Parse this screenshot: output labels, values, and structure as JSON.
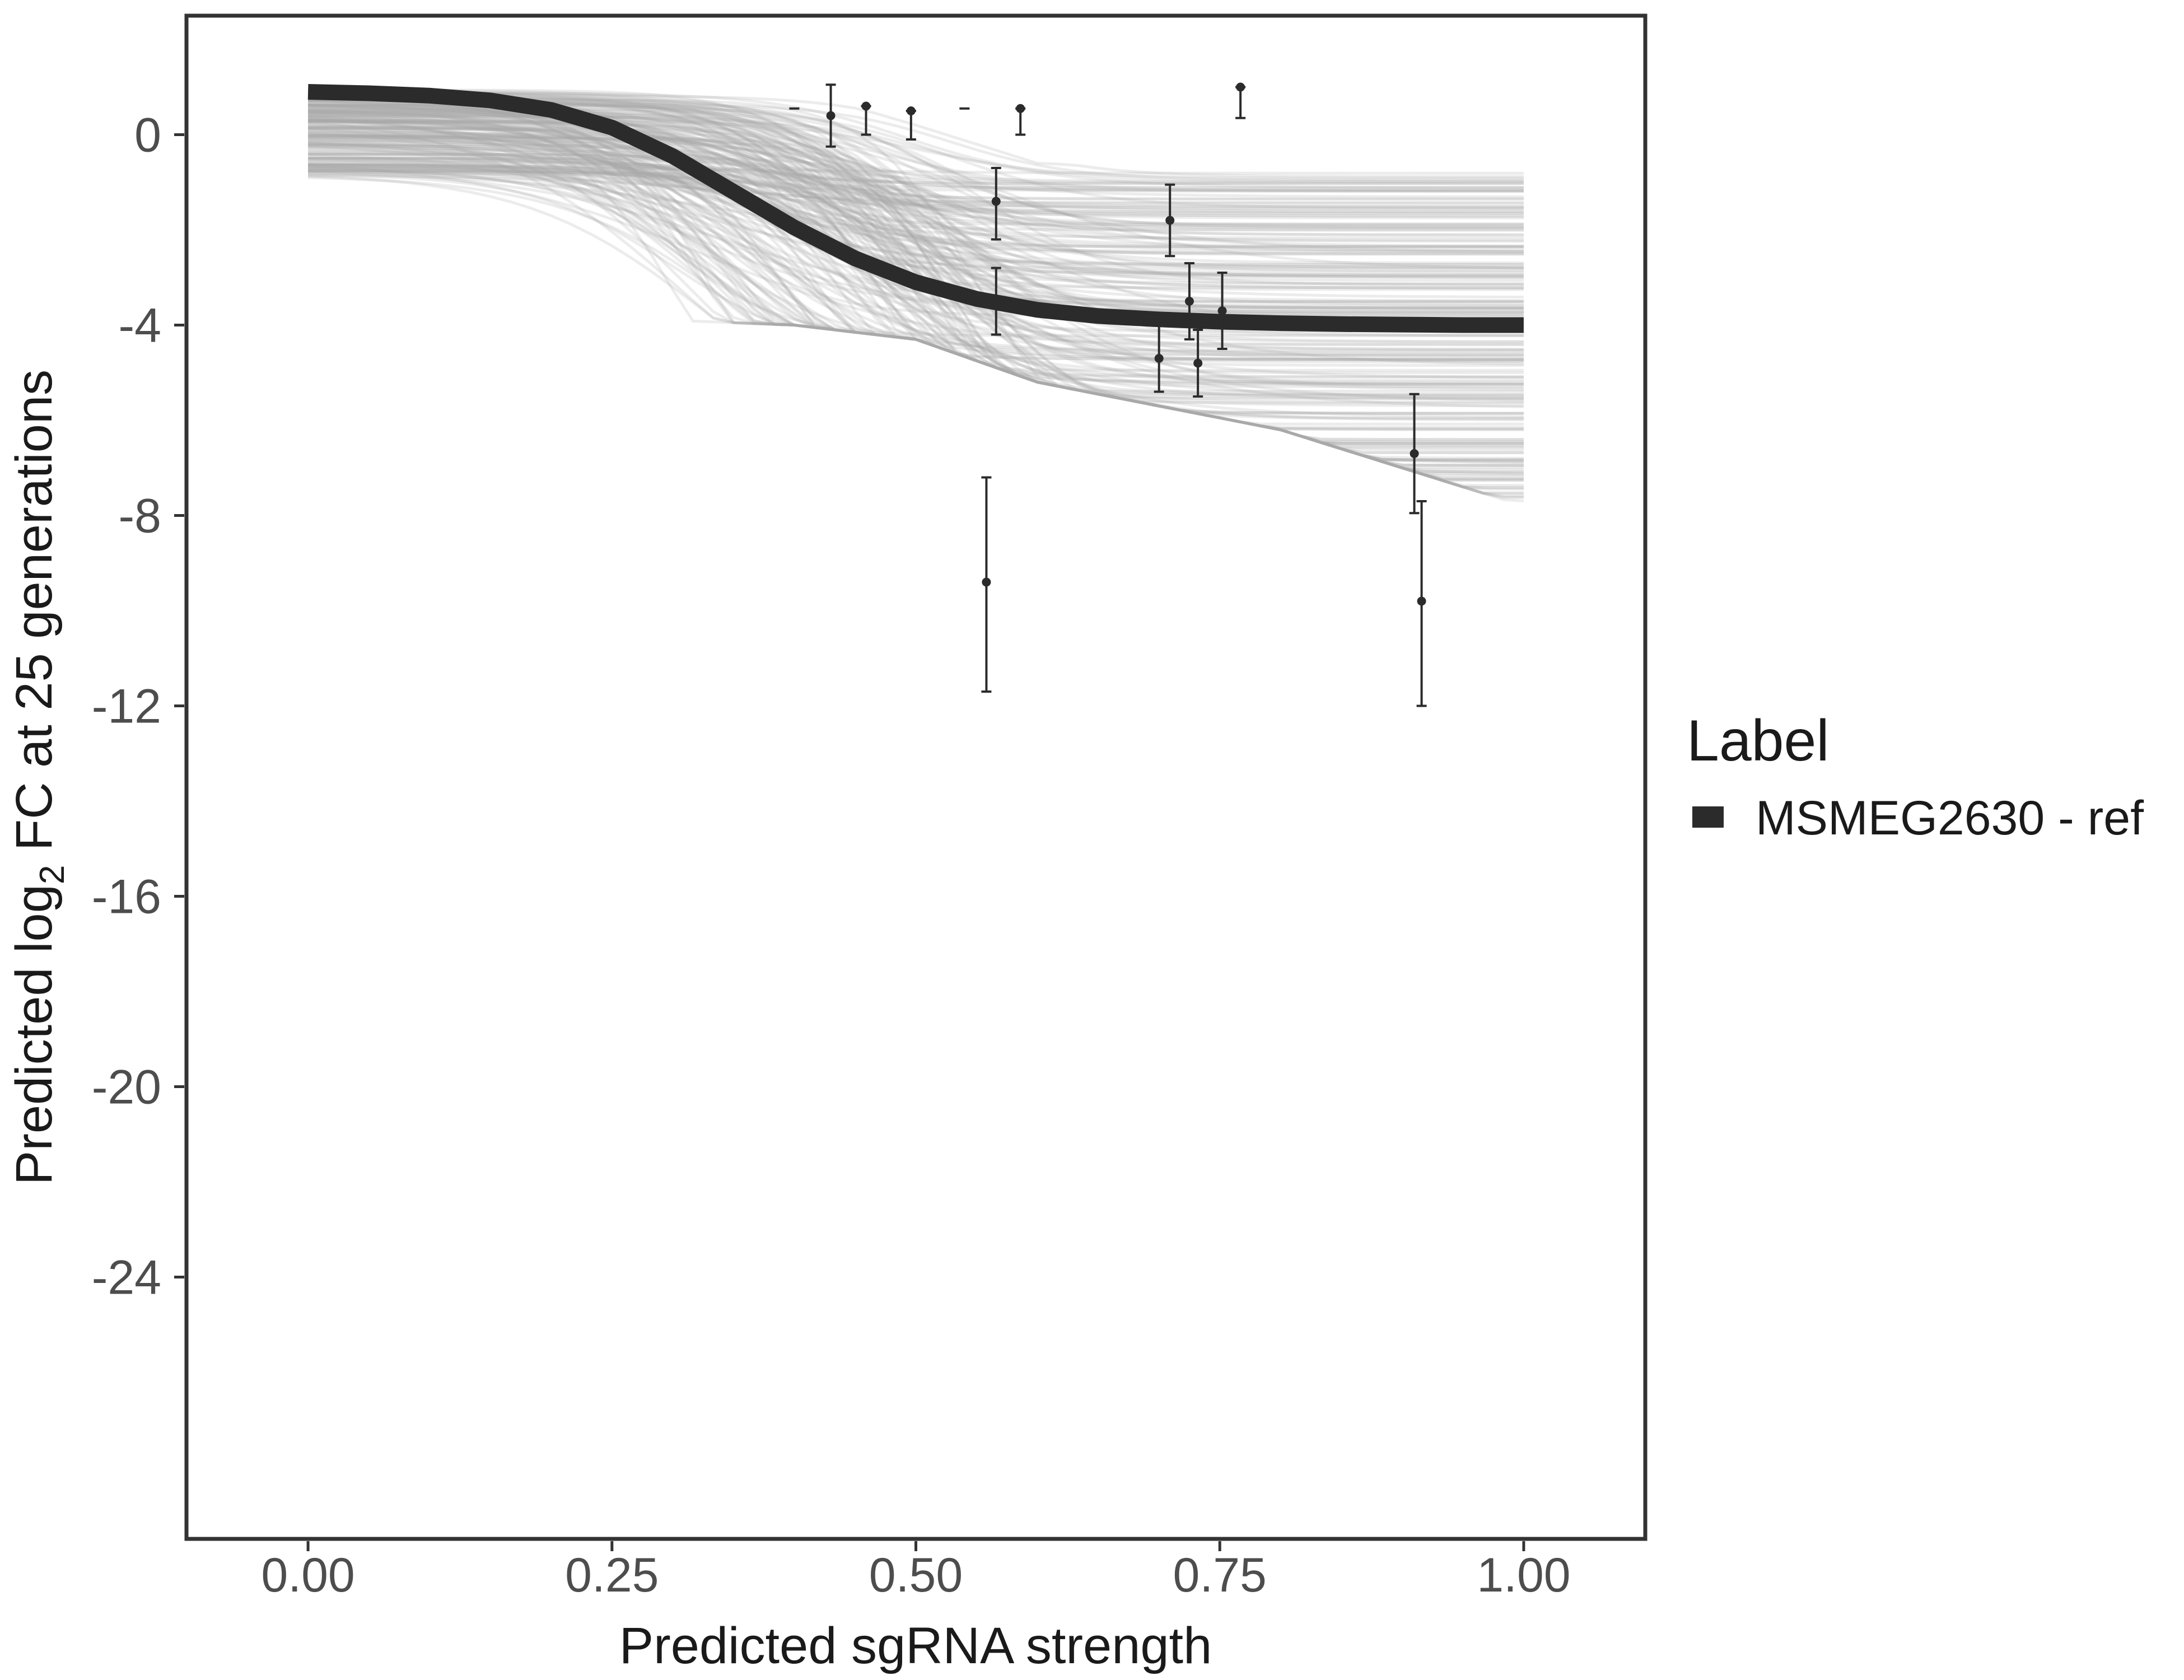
{
  "chart_data": {
    "type": "line",
    "title": "",
    "xlabel": "Predicted sgRNA strength",
    "ylabel": {
      "prefix": "Predicted  log",
      "subscript": "2",
      "suffix": " FC at 25 generations"
    },
    "xlim": [
      -0.1,
      2.0
    ],
    "xlim_visible": [
      -0.1,
      1.1
    ],
    "ylim": [
      -29.5,
      2.5
    ],
    "x_ticks": [
      0.0,
      0.25,
      0.5,
      0.75,
      1.0
    ],
    "x_tick_labels": [
      "0.00",
      "0.25",
      "0.50",
      "0.75",
      "1.00"
    ],
    "y_ticks": [
      0,
      -4,
      -8,
      -12,
      -16,
      -20,
      -24
    ],
    "y_tick_labels": [
      "0",
      "-4",
      "-8",
      "-12",
      "-16",
      "-20",
      "-24"
    ],
    "grid": false,
    "colors": {
      "fit_line": "#2b2b2b",
      "posterior_draws": "#a8a8a8",
      "points": "#2b2b2b",
      "frame": "#333333"
    },
    "legend": {
      "title": "Label",
      "position": "right",
      "entries": [
        {
          "label": "MSMEG2630 - ref",
          "color": "#2b2b2b"
        }
      ]
    },
    "fit_curve": {
      "name": "MSMEG2630 - ref",
      "x": [
        0.0,
        0.05,
        0.1,
        0.15,
        0.2,
        0.25,
        0.3,
        0.35,
        0.4,
        0.45,
        0.5,
        0.55,
        0.6,
        0.65,
        0.7,
        0.75,
        0.8,
        0.85,
        0.9,
        0.95,
        1.0
      ],
      "y": [
        0.9,
        0.87,
        0.82,
        0.72,
        0.52,
        0.15,
        -0.45,
        -1.2,
        -1.95,
        -2.6,
        -3.1,
        -3.45,
        -3.68,
        -3.81,
        -3.88,
        -3.93,
        -3.96,
        -3.98,
        -3.99,
        -4.0,
        -4.0
      ]
    },
    "posterior_band": {
      "description_series": "spread of grey posterior draws",
      "x": [
        0.0,
        0.2,
        0.4,
        0.5,
        0.6,
        0.8,
        1.0
      ],
      "upper": [
        0.95,
        0.95,
        0.95,
        0.2,
        -0.6,
        -0.8,
        -0.8
      ],
      "lower": [
        -3.8,
        -3.8,
        -4.0,
        -4.3,
        -5.2,
        -6.2,
        -7.8
      ]
    },
    "points": [
      {
        "x": 0.4,
        "y": 0.55,
        "ymin": 0.55,
        "ymax": 0.55
      },
      {
        "x": 0.43,
        "y": 0.4,
        "ymin": -0.25,
        "ymax": 1.05
      },
      {
        "x": 0.459,
        "y": 0.6,
        "ymin": 0.0,
        "ymax": 0.6
      },
      {
        "x": 0.496,
        "y": 0.5,
        "ymin": -0.1,
        "ymax": 0.5
      },
      {
        "x": 0.54,
        "y": 0.55,
        "ymin": 0.55,
        "ymax": 0.55
      },
      {
        "x": 0.586,
        "y": 0.55,
        "ymin": 0.0,
        "ymax": 0.55
      },
      {
        "x": 0.558,
        "y": -9.4,
        "ymin": -11.7,
        "ymax": -7.2
      },
      {
        "x": 0.566,
        "y": -1.4,
        "ymin": -2.2,
        "ymax": -0.7
      },
      {
        "x": 0.566,
        "y": -3.5,
        "ymin": -4.2,
        "ymax": -2.8
      },
      {
        "x": 0.7,
        "y": -4.7,
        "ymin": -5.4,
        "ymax": -3.9
      },
      {
        "x": 0.709,
        "y": -1.8,
        "ymin": -2.55,
        "ymax": -1.05
      },
      {
        "x": 0.725,
        "y": -3.5,
        "ymin": -4.3,
        "ymax": -2.7
      },
      {
        "x": 0.732,
        "y": -4.8,
        "ymin": -5.5,
        "ymax": -4.1
      },
      {
        "x": 0.752,
        "y": -3.7,
        "ymin": -4.5,
        "ymax": -2.9
      },
      {
        "x": 0.767,
        "y": 1.0,
        "ymin": 0.35,
        "ymax": 1.0
      },
      {
        "x": 0.91,
        "y": -6.7,
        "ymin": -7.95,
        "ymax": -5.45
      },
      {
        "x": 0.916,
        "y": -9.8,
        "ymin": -12.0,
        "ymax": -7.7
      }
    ]
  }
}
